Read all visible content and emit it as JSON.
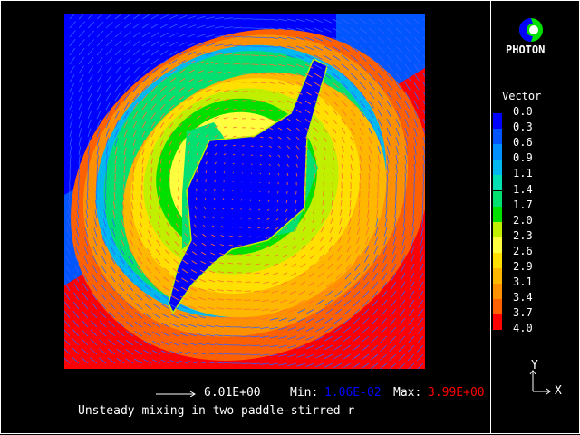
{
  "logo": {
    "text": "PHOTON"
  },
  "legend": {
    "title": "Vector",
    "labels": [
      "0.0",
      "0.3",
      "0.6",
      "0.9",
      "1.1",
      "1.4",
      "1.7",
      "2.0",
      "2.3",
      "2.6",
      "2.9",
      "3.1",
      "3.4",
      "3.7",
      "4.0"
    ],
    "colors": [
      "#0000ff",
      "#0055ff",
      "#0090ff",
      "#00b8f0",
      "#00e0b0",
      "#00e070",
      "#00e000",
      "#c0f000",
      "#ffff40",
      "#ffe000",
      "#ffb800",
      "#ff9000",
      "#ff6000",
      "#ff0000"
    ]
  },
  "footer": {
    "reference_vector": "6.01E+00",
    "min_label": "Min:",
    "min_value": "1.06E-02",
    "max_label": "Max:",
    "max_value": "3.99E+00",
    "min_color": "#0000ff",
    "max_color": "#ff0000",
    "caption": "Unsteady mixing in two paddle-stirred r"
  },
  "axes": {
    "y": "Y",
    "x": "X"
  }
}
